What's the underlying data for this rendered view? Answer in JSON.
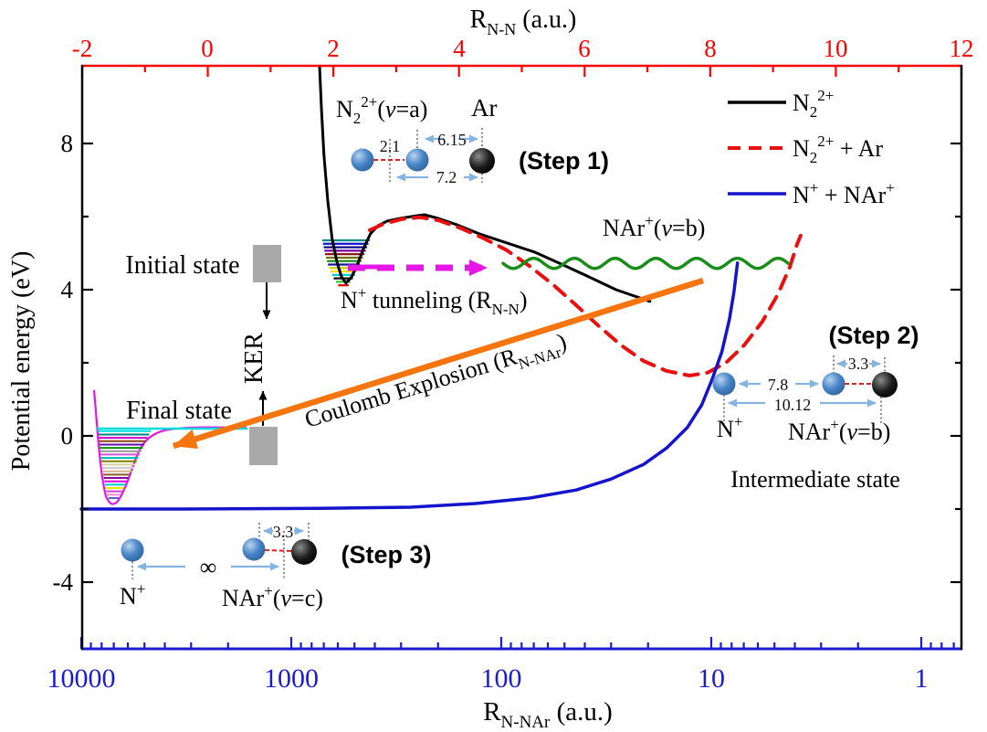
{
  "figure": {
    "background": "#ffffff",
    "kind": "potential energy curve diagram"
  },
  "palette": {
    "accent_red": "#ff0000",
    "axis_blue": "#1b1bd2",
    "curve_black": "#000000",
    "curve_red_dashed": "#e81010",
    "curve_blue": "#1414cc",
    "curve_green": "#1a8c1a",
    "magenta": "#e616e6",
    "orange": "#f7750f",
    "navy_text": "#2323a8",
    "violet_text": "#4343d6",
    "green_text": "#128a12",
    "gray_box": "#a9a9a9",
    "dim_arrow_blue": "#85b4e0",
    "sphere_blue": "#3b7bbf",
    "sphere_black": "#000000",
    "cyan_level": "#00dcdc"
  },
  "axes": {
    "top": {
      "color": "#ff0000",
      "range": [
        -2,
        12
      ],
      "ticks": [
        {
          "v": -2,
          "label": "-2"
        },
        {
          "v": 0,
          "label": "0"
        },
        {
          "v": 2,
          "label": "2"
        },
        {
          "v": 4,
          "label": "4"
        },
        {
          "v": 6,
          "label": "6"
        },
        {
          "v": 8,
          "label": "8"
        },
        {
          "v": 10,
          "label": "10"
        },
        {
          "v": 12,
          "label": "12"
        }
      ],
      "minor": [
        -1,
        1,
        3,
        5,
        7,
        9,
        11
      ]
    },
    "bottom": {
      "color": "#1b1bd2",
      "scale": "log-reversed",
      "ticks": [
        {
          "v": 10000,
          "label": "10000"
        },
        {
          "v": 1000,
          "label": "1000"
        },
        {
          "v": 100,
          "label": "100"
        },
        {
          "v": 10,
          "label": "10"
        },
        {
          "v": 1,
          "label": "1"
        }
      ]
    },
    "left": {
      "color": "#000000",
      "ticks": [
        {
          "v": 8,
          "label": "8"
        },
        {
          "v": 4,
          "label": "4"
        },
        {
          "v": 0,
          "label": "0"
        },
        {
          "v": -4,
          "label": "-4"
        }
      ],
      "minor": [
        6,
        2,
        -2
      ]
    }
  },
  "labels": {
    "top_title": {
      "p": [
        "R",
        "N-N",
        " (a.u.)"
      ]
    },
    "bottom_title": {
      "p": [
        "R",
        "N-NAr",
        " (a.u.)"
      ]
    },
    "y_title": "Potential energy (eV)",
    "legend0": {
      "p": [
        "N",
        "2",
        "2+"
      ]
    },
    "legend1": {
      "p": [
        "N",
        "2",
        "2+",
        " + Ar"
      ]
    },
    "legend2": {
      "p": [
        "N",
        "+",
        " + NAr",
        "+"
      ]
    },
    "n2va": {
      "p": [
        "N",
        "2",
        "2+",
        "(",
        "v",
        "=a)"
      ]
    },
    "ar": "Ar",
    "step1": "(Step 1)",
    "step2": "(Step 2)",
    "step3": "(Step 3)",
    "initial_state": "Initial state",
    "final_state": "Final state",
    "intermediate_state": "Intermediate state",
    "ker": "KER",
    "tunneling": {
      "p": [
        "N",
        "+",
        " tunneling  (R",
        "N-N",
        ")"
      ]
    },
    "coulomb": {
      "p": [
        "Coulomb Explosion (R",
        "N-NAr",
        ")"
      ]
    },
    "nar_vb_top": {
      "p": [
        "NAr",
        "+",
        "(",
        "v",
        "=b)"
      ]
    },
    "nar_vb2": {
      "p": [
        "NAr",
        "+",
        "(",
        "v",
        "=b)"
      ]
    },
    "nar_vc": {
      "p": [
        "NAr",
        "+",
        "(",
        "v",
        "=c)"
      ]
    },
    "nplus2": {
      "p": [
        "N",
        "+"
      ]
    },
    "nplus3": {
      "p": [
        "N",
        "+"
      ]
    }
  },
  "dimensions": {
    "s1_bond": "2.1",
    "s1_na": "6.15",
    "s1_total": "7.2",
    "s2_bond": "3.3",
    "s2_na": "7.8",
    "s2_total": "10.12",
    "s3_bond": "3.3",
    "s3_sep": "∞"
  },
  "chart_data": {
    "type": "line",
    "axes": {
      "top_x": {
        "label": "R_N-N (a.u.)",
        "range": [
          -2,
          12
        ],
        "scale": "linear"
      },
      "bottom_x": {
        "label": "R_N-NAr (a.u.)",
        "range": [
          10000,
          1
        ],
        "scale": "log",
        "reversed": true
      },
      "y": {
        "label": "Potential energy (eV)",
        "range": [
          -5.8,
          10.1
        ]
      }
    },
    "legend_position": "top-right",
    "series": [
      {
        "name": "N2 2+",
        "axis": "top",
        "color": "#000000",
        "width": 3,
        "dash": null,
        "points": [
          [
            1.78,
            10.12
          ],
          [
            1.81,
            8.93
          ],
          [
            1.85,
            7.68
          ],
          [
            1.91,
            6.43
          ],
          [
            1.98,
            5.38
          ],
          [
            2.06,
            4.73
          ],
          [
            2.13,
            4.35
          ],
          [
            2.2,
            4.18
          ],
          [
            2.29,
            4.35
          ],
          [
            2.38,
            4.68
          ],
          [
            2.48,
            5.13
          ],
          [
            2.59,
            5.53
          ],
          [
            2.71,
            5.75
          ],
          [
            2.86,
            5.88
          ],
          [
            3.06,
            5.95
          ],
          [
            3.31,
            6.02
          ],
          [
            3.45,
            6.05
          ],
          [
            3.67,
            5.95
          ],
          [
            3.96,
            5.78
          ],
          [
            4.32,
            5.53
          ],
          [
            4.76,
            5.28
          ],
          [
            5.2,
            5.03
          ],
          [
            5.63,
            4.7
          ],
          [
            6.07,
            4.35
          ],
          [
            6.5,
            4.0
          ],
          [
            7.04,
            3.68
          ]
        ]
      },
      {
        "name": "N2 2+ + Ar",
        "axis": "top",
        "color": "#e81010",
        "width": 4,
        "dash": "15 10",
        "points": [
          [
            2.58,
            5.63
          ],
          [
            2.8,
            5.8
          ],
          [
            3.09,
            5.93
          ],
          [
            3.38,
            5.98
          ],
          [
            3.67,
            5.9
          ],
          [
            4.03,
            5.68
          ],
          [
            4.4,
            5.4
          ],
          [
            4.76,
            5.08
          ],
          [
            5.12,
            4.65
          ],
          [
            5.49,
            4.15
          ],
          [
            5.85,
            3.6
          ],
          [
            6.21,
            3.03
          ],
          [
            6.58,
            2.48
          ],
          [
            6.94,
            2.05
          ],
          [
            7.3,
            1.78
          ],
          [
            7.67,
            1.65
          ],
          [
            7.96,
            1.73
          ],
          [
            8.25,
            2.0
          ],
          [
            8.54,
            2.48
          ],
          [
            8.83,
            3.13
          ],
          [
            9.08,
            3.88
          ],
          [
            9.27,
            4.63
          ],
          [
            9.38,
            5.23
          ],
          [
            9.44,
            5.48
          ]
        ]
      },
      {
        "name": "N+ + NAr+",
        "axis": "bottom",
        "color": "#1414cc",
        "width": 3.5,
        "dash": null,
        "points": [
          [
            10000,
            -2.0
          ],
          [
            3300,
            -2.0
          ],
          [
            730,
            -1.98
          ],
          [
            270,
            -1.95
          ],
          [
            133,
            -1.85
          ],
          [
            73,
            -1.7
          ],
          [
            44,
            -1.48
          ],
          [
            30,
            -1.18
          ],
          [
            21,
            -0.78
          ],
          [
            16.3,
            -0.33
          ],
          [
            13.0,
            0.23
          ],
          [
            11.1,
            0.85
          ],
          [
            9.9,
            1.55
          ],
          [
            8.9,
            2.3
          ],
          [
            8.2,
            3.18
          ],
          [
            7.8,
            3.93
          ],
          [
            7.5,
            4.73
          ]
        ]
      },
      {
        "name": "NAr+(v=b) vibration",
        "axis": "bottom",
        "color": "#1a8c1a",
        "width": 3.5,
        "wavy": {
          "R_start": 98,
          "R_end": 4.3,
          "E": 4.72,
          "amp_eV": 0.14,
          "cycles": 7
        }
      }
    ],
    "wells": [
      {
        "name": "initial state N2 2+ vibrational levels",
        "E_top": 5.35,
        "E_bottom": 4.12,
        "count": 14,
        "colors": [
          "#008b8b",
          "#1212cc",
          "#000080",
          "#7d00a8",
          "#8b1a1a",
          "#6e6e00",
          "#0c8c0c",
          "#14149c",
          "#cfcf00",
          "#ffe000",
          "#00d0d0",
          "#111111",
          "#22cc22",
          "#e00000"
        ]
      },
      {
        "name": "final state NAr+ vibrational levels",
        "E_top": 0.13,
        "E_bottom": -1.7,
        "count": 21,
        "colors": [
          "#00e0e0",
          "#008080",
          "#cc00cc",
          "#8b4513",
          "#6a0dad",
          "#0c8c0c",
          "#999999",
          "#d455d4",
          "#00b8b8",
          "#808000",
          "#d8cfa0",
          "#cccccc",
          "#d2b48c",
          "#8a5a2a",
          "#8800aa",
          "#e000e0",
          "#00cccc",
          "#e8e800",
          "#cc44cc",
          "#f090c8",
          "#5858e8"
        ]
      }
    ],
    "key_points": {
      "tunneling_level_E_eV": 4.6,
      "blue_asymptote_E_eV": -2.0,
      "red_curve_minimum": {
        "R_NN": 7.7,
        "E_eV": 1.65
      },
      "barrier_top": {
        "R_NN": 3.45,
        "E_eV": 6.05
      }
    },
    "molecule_distances_au": {
      "step1": {
        "N_N": 2.1,
        "N2_Ar": 6.15,
        "total": 7.2
      },
      "step2": {
        "N_Ar_bond": 3.3,
        "N_N": 7.8,
        "total": 10.12
      },
      "step3": {
        "N_Ar_bond": 3.3,
        "separation": "infinity"
      }
    }
  }
}
